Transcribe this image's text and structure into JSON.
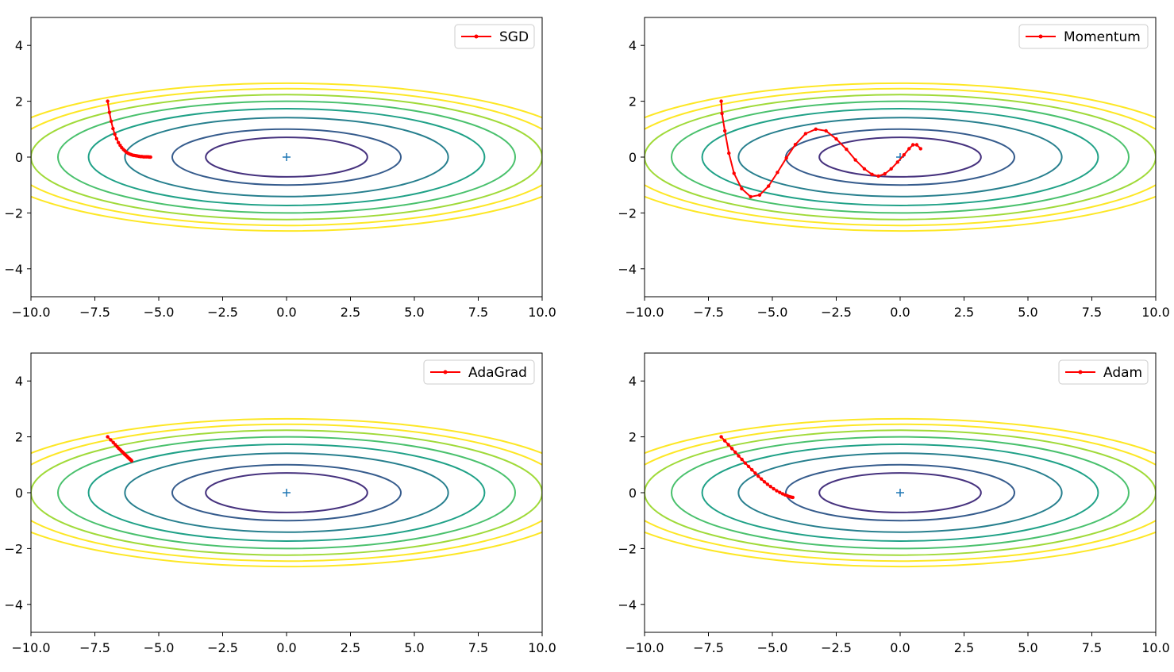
{
  "figure": {
    "function": "f(x, y) = x^2 / 20 + y^2",
    "contour_levels": [
      0.5,
      1,
      2,
      3,
      4,
      5,
      6,
      7
    ]
  },
  "chart_data": [
    {
      "type": "line",
      "title": "",
      "legend": "SGD",
      "legend_position": "top-right",
      "xlim": [
        -10,
        10
      ],
      "ylim": [
        -5,
        5
      ],
      "xticks": [
        -10.0,
        -7.5,
        -5.0,
        -2.5,
        0.0,
        2.5,
        5.0,
        7.5,
        10.0
      ],
      "xtick_labels": [
        "−10.0",
        "−7.5",
        "−5.0",
        "−2.5",
        "0.0",
        "2.5",
        "5.0",
        "7.5",
        "10.0"
      ],
      "yticks": [
        -4,
        -2,
        0,
        2,
        4
      ],
      "ytick_labels": [
        "−4",
        "−2",
        "0",
        "2",
        "4"
      ],
      "minimum_marker": [
        0,
        0
      ],
      "series": [
        {
          "name": "SGD",
          "color": "#ff0000",
          "x": [
            -7.0,
            -6.93,
            -6.86,
            -6.79,
            -6.72,
            -6.65,
            -6.58,
            -6.51,
            -6.45,
            -6.38,
            -6.32,
            -6.26,
            -6.2,
            -6.14,
            -6.08,
            -6.02,
            -5.96,
            -5.9,
            -5.84,
            -5.78,
            -5.72,
            -5.66,
            -5.6,
            -5.54,
            -5.48,
            -5.42,
            -5.37,
            -5.32
          ],
          "y": [
            2.0,
            1.6,
            1.28,
            1.02,
            0.82,
            0.66,
            0.52,
            0.42,
            0.34,
            0.27,
            0.22,
            0.17,
            0.14,
            0.11,
            0.09,
            0.07,
            0.06,
            0.05,
            0.04,
            0.03,
            0.02,
            0.02,
            0.01,
            0.01,
            0.01,
            0.01,
            0.0,
            0.0
          ]
        }
      ]
    },
    {
      "type": "line",
      "title": "",
      "legend": "Momentum",
      "legend_position": "top-right",
      "xlim": [
        -10,
        10
      ],
      "ylim": [
        -5,
        5
      ],
      "xticks": [
        -10.0,
        -7.5,
        -5.0,
        -2.5,
        0.0,
        2.5,
        5.0,
        7.5,
        10.0
      ],
      "xtick_labels": [
        "−10.0",
        "−7.5",
        "−5.0",
        "−2.5",
        "0.0",
        "2.5",
        "5.0",
        "7.5",
        "10.0"
      ],
      "yticks": [
        -4,
        -2,
        0,
        2,
        4
      ],
      "ytick_labels": [
        "−4",
        "−2",
        "0",
        "2",
        "4"
      ],
      "minimum_marker": [
        0,
        0
      ],
      "series": [
        {
          "name": "Momentum",
          "color": "#ff0000",
          "x": [
            -7.0,
            -6.97,
            -6.86,
            -6.7,
            -6.5,
            -6.2,
            -5.85,
            -5.5,
            -5.15,
            -4.8,
            -4.45,
            -4.1,
            -3.7,
            -3.3,
            -2.9,
            -2.5,
            -2.1,
            -1.75,
            -1.4,
            -1.1,
            -0.85,
            -0.6,
            -0.35,
            -0.1,
            0.15,
            0.35,
            0.5,
            0.65,
            0.8
          ],
          "y": [
            2.0,
            1.56,
            0.94,
            0.14,
            -0.58,
            -1.13,
            -1.42,
            -1.36,
            -1.04,
            -0.55,
            -0.03,
            0.45,
            0.84,
            1.0,
            0.94,
            0.65,
            0.28,
            -0.1,
            -0.42,
            -0.62,
            -0.68,
            -0.6,
            -0.42,
            -0.18,
            0.08,
            0.3,
            0.44,
            0.44,
            0.3
          ]
        }
      ]
    },
    {
      "type": "line",
      "title": "",
      "legend": "AdaGrad",
      "legend_position": "top-right",
      "xlim": [
        -10,
        10
      ],
      "ylim": [
        -5,
        5
      ],
      "xticks": [
        -10.0,
        -7.5,
        -5.0,
        -2.5,
        0.0,
        2.5,
        5.0,
        7.5,
        10.0
      ],
      "xtick_labels": [
        "−10.0",
        "−7.5",
        "−5.0",
        "−2.5",
        "0.0",
        "2.5",
        "5.0",
        "7.5",
        "10.0"
      ],
      "yticks": [
        -4,
        -2,
        0,
        2,
        4
      ],
      "ytick_labels": [
        "−4",
        "−2",
        "0",
        "2",
        "4"
      ],
      "minimum_marker": [
        0,
        0
      ],
      "series": [
        {
          "name": "AdaGrad",
          "color": "#ff0000",
          "x": [
            -7.0,
            -6.88,
            -6.78,
            -6.7,
            -6.63,
            -6.57,
            -6.51,
            -6.46,
            -6.41,
            -6.37,
            -6.33,
            -6.29,
            -6.25,
            -6.22,
            -6.19,
            -6.16,
            -6.13,
            -6.1,
            -6.08,
            -6.06
          ],
          "y": [
            2.0,
            1.89,
            1.8,
            1.72,
            1.65,
            1.59,
            1.54,
            1.49,
            1.45,
            1.41,
            1.37,
            1.34,
            1.31,
            1.28,
            1.25,
            1.23,
            1.2,
            1.18,
            1.16,
            1.14
          ]
        }
      ]
    },
    {
      "type": "line",
      "title": "",
      "legend": "Adam",
      "legend_position": "top-right",
      "xlim": [
        -10,
        10
      ],
      "ylim": [
        -5,
        5
      ],
      "xticks": [
        -10.0,
        -7.5,
        -5.0,
        -2.5,
        0.0,
        2.5,
        5.0,
        7.5,
        10.0
      ],
      "xtick_labels": [
        "−10.0",
        "−7.5",
        "−5.0",
        "−2.5",
        "0.0",
        "2.5",
        "5.0",
        "7.5",
        "10.0"
      ],
      "yticks": [
        -4,
        -2,
        0,
        2,
        4
      ],
      "ytick_labels": [
        "−4",
        "−2",
        "0",
        "2",
        "4"
      ],
      "minimum_marker": [
        0,
        0
      ],
      "series": [
        {
          "name": "Adam",
          "color": "#ff0000",
          "x": [
            -7.0,
            -6.86,
            -6.72,
            -6.58,
            -6.45,
            -6.32,
            -6.19,
            -6.06,
            -5.93,
            -5.8,
            -5.67,
            -5.55,
            -5.43,
            -5.31,
            -5.19,
            -5.07,
            -4.95,
            -4.83,
            -4.71,
            -4.6,
            -4.5,
            -4.41,
            -4.33,
            -4.26,
            -4.2
          ],
          "y": [
            2.0,
            1.86,
            1.72,
            1.58,
            1.45,
            1.32,
            1.19,
            1.06,
            0.94,
            0.82,
            0.7,
            0.59,
            0.49,
            0.39,
            0.3,
            0.22,
            0.14,
            0.07,
            0.01,
            -0.04,
            -0.08,
            -0.11,
            -0.14,
            -0.16,
            -0.17
          ]
        }
      ]
    }
  ]
}
